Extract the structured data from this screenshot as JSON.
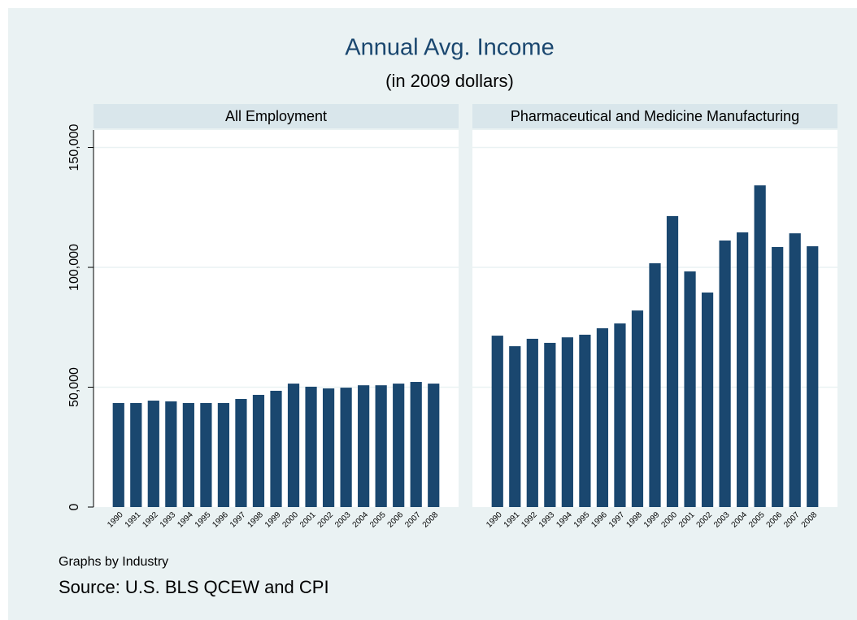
{
  "chart_data": {
    "type": "bar",
    "title": "Annual Avg. Income",
    "subtitle": "(in 2009 dollars)",
    "note": "Graphs by Industry",
    "caption": "Source: U.S. BLS QCEW and CPI",
    "categories": [
      "1990",
      "1991",
      "1992",
      "1993",
      "1994",
      "1995",
      "1996",
      "1997",
      "1998",
      "1999",
      "2000",
      "2001",
      "2002",
      "2003",
      "2004",
      "2005",
      "2006",
      "2007",
      "2008"
    ],
    "series": [
      {
        "name": "All Employment",
        "color": "#1a476f",
        "values": [
          43400,
          43400,
          44400,
          44100,
          43400,
          43400,
          43400,
          45100,
          46800,
          48500,
          51500,
          50200,
          49500,
          49800,
          50800,
          50800,
          51500,
          52200,
          51500
        ]
      },
      {
        "name": "Pharmaceutical and Medicine Manufacturing",
        "color": "#1a476f",
        "values": [
          71500,
          67100,
          70200,
          68500,
          70800,
          71900,
          74600,
          76600,
          82000,
          101700,
          121400,
          98300,
          89500,
          111200,
          114600,
          134200,
          108500,
          114200,
          108800
        ]
      }
    ],
    "ylim": [
      0,
      157300
    ],
    "yticks": [
      0,
      {
        "value": 50000,
        "label": "50,000"
      },
      {
        "value": 100000,
        "label": "100,000"
      },
      {
        "value": 150000,
        "label": "150,000"
      }
    ],
    "grid": true
  }
}
